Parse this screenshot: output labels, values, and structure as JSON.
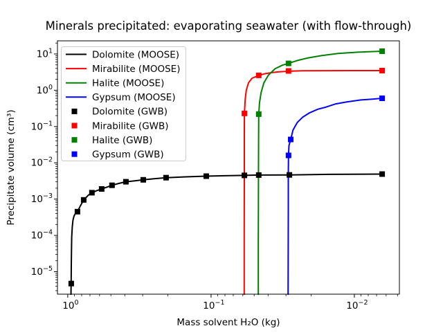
{
  "chart_data": {
    "type": "line",
    "title": "Minerals precipitated: evaporating seawater (with flow-through)",
    "xlabel": "Mass solvent H₂O (kg)",
    "ylabel": "Precipitate volume (cm³)",
    "grid": false,
    "legend_position": "upper-left",
    "x_axis": {
      "scale": "log",
      "inverted": true,
      "lim": [
        1.18,
        0.00485
      ],
      "tick_exponents": [
        0,
        -1,
        -2
      ]
    },
    "y_axis": {
      "scale": "log",
      "inverted": false,
      "lim": [
        2.4e-06,
        23
      ],
      "tick_exponents": [
        1,
        0,
        -1,
        -2,
        -3,
        -4,
        -5
      ]
    },
    "series": [
      {
        "name": "Dolomite (MOOSE)",
        "type": "line",
        "color": "#000000",
        "points": [
          [
            0.95,
            2.2e-06
          ],
          [
            0.947,
            5e-06
          ],
          [
            0.945,
            1.5e-05
          ],
          [
            0.942,
            4e-05
          ],
          [
            0.938,
            9e-05
          ],
          [
            0.93,
            0.00017
          ],
          [
            0.92,
            0.00026
          ],
          [
            0.905,
            0.00034
          ],
          [
            0.885,
            0.0004
          ],
          [
            0.856,
            0.00045
          ],
          [
            0.815,
            0.00066
          ],
          [
            0.774,
            0.00095
          ],
          [
            0.72,
            0.00127
          ],
          [
            0.678,
            0.0015
          ],
          [
            0.63,
            0.0017
          ],
          [
            0.58,
            0.0019
          ],
          [
            0.53,
            0.00215
          ],
          [
            0.491,
            0.0024
          ],
          [
            0.44,
            0.0027
          ],
          [
            0.393,
            0.003
          ],
          [
            0.34,
            0.0032
          ],
          [
            0.297,
            0.0034
          ],
          [
            0.25,
            0.00365
          ],
          [
            0.206,
            0.0039
          ],
          [
            0.15,
            0.0041
          ],
          [
            0.108,
            0.0043
          ],
          [
            0.08,
            0.0044
          ],
          [
            0.0585,
            0.0045
          ],
          [
            0.0465,
            0.0046
          ],
          [
            0.0284,
            0.00465
          ],
          [
            0.015,
            0.0048
          ],
          [
            0.0064,
            0.0049
          ]
        ]
      },
      {
        "name": "Mirabilite (MOOSE)",
        "type": "line",
        "color": "#ff0000",
        "points": [
          [
            0.0587,
            2.2e-06
          ],
          [
            0.0587,
            0.0001
          ],
          [
            0.0586,
            0.005
          ],
          [
            0.0586,
            0.06
          ],
          [
            0.0585,
            0.23
          ],
          [
            0.0578,
            0.55
          ],
          [
            0.0568,
            1.0
          ],
          [
            0.0548,
            1.6
          ],
          [
            0.0518,
            2.15
          ],
          [
            0.0465,
            2.57
          ],
          [
            0.042,
            2.85
          ],
          [
            0.038,
            3.05
          ],
          [
            0.034,
            3.2
          ],
          [
            0.0288,
            3.35
          ],
          [
            0.023,
            3.43
          ],
          [
            0.015,
            3.47
          ],
          [
            0.0064,
            3.48
          ]
        ]
      },
      {
        "name": "Halite (MOOSE)",
        "type": "line",
        "color": "#008000",
        "points": [
          [
            0.0468,
            2.2e-06
          ],
          [
            0.0468,
            0.0001
          ],
          [
            0.0467,
            0.005
          ],
          [
            0.0466,
            0.05
          ],
          [
            0.0465,
            0.22
          ],
          [
            0.0459,
            0.45
          ],
          [
            0.0448,
            0.85
          ],
          [
            0.0428,
            1.6
          ],
          [
            0.0398,
            2.6
          ],
          [
            0.0358,
            3.9
          ],
          [
            0.0318,
            4.9
          ],
          [
            0.0288,
            5.5
          ],
          [
            0.025,
            6.6
          ],
          [
            0.021,
            7.8
          ],
          [
            0.017,
            9.0
          ],
          [
            0.013,
            10.3
          ],
          [
            0.0095,
            11.2
          ],
          [
            0.0064,
            11.9
          ]
        ]
      },
      {
        "name": "Gypsum (MOOSE)",
        "type": "line",
        "color": "#0000ff",
        "points": [
          [
            0.029,
            2.2e-06
          ],
          [
            0.0289,
            0.0005
          ],
          [
            0.0289,
            0.005
          ],
          [
            0.0288,
            0.016
          ],
          [
            0.0286,
            0.03
          ],
          [
            0.0278,
            0.044
          ],
          [
            0.0268,
            0.08
          ],
          [
            0.025,
            0.13
          ],
          [
            0.023,
            0.18
          ],
          [
            0.0205,
            0.24
          ],
          [
            0.018,
            0.3
          ],
          [
            0.0157,
            0.345
          ],
          [
            0.0135,
            0.42
          ],
          [
            0.0112,
            0.48
          ],
          [
            0.009,
            0.54
          ],
          [
            0.0075,
            0.57
          ],
          [
            0.0064,
            0.6
          ]
        ]
      },
      {
        "name": "Dolomite (GWB)",
        "type": "scatter",
        "marker": "square",
        "color": "#000000",
        "points": [
          [
            0.946,
            4.7e-06
          ],
          [
            0.856,
            0.00045
          ],
          [
            0.774,
            0.00095
          ],
          [
            0.678,
            0.0015
          ],
          [
            0.58,
            0.0019
          ],
          [
            0.491,
            0.0024
          ],
          [
            0.393,
            0.003
          ],
          [
            0.297,
            0.0034
          ],
          [
            0.206,
            0.0039
          ],
          [
            0.108,
            0.0043
          ],
          [
            0.0585,
            0.0045
          ],
          [
            0.0465,
            0.0046
          ],
          [
            0.0284,
            0.00465
          ],
          [
            0.0064,
            0.0049
          ]
        ]
      },
      {
        "name": "Mirabilite (GWB)",
        "type": "scatter",
        "marker": "square",
        "color": "#ff0000",
        "points": [
          [
            0.0585,
            0.23
          ],
          [
            0.0465,
            2.57
          ],
          [
            0.0288,
            3.4
          ],
          [
            0.0064,
            3.48
          ]
        ]
      },
      {
        "name": "Halite (GWB)",
        "type": "scatter",
        "marker": "square",
        "color": "#008000",
        "points": [
          [
            0.0465,
            0.22
          ],
          [
            0.0288,
            5.5
          ],
          [
            0.0064,
            11.9
          ]
        ]
      },
      {
        "name": "Gypsum (GWB)",
        "type": "scatter",
        "marker": "square",
        "color": "#0000ff",
        "points": [
          [
            0.0288,
            0.016
          ],
          [
            0.0278,
            0.044
          ],
          [
            0.0064,
            0.6
          ]
        ]
      }
    ]
  }
}
